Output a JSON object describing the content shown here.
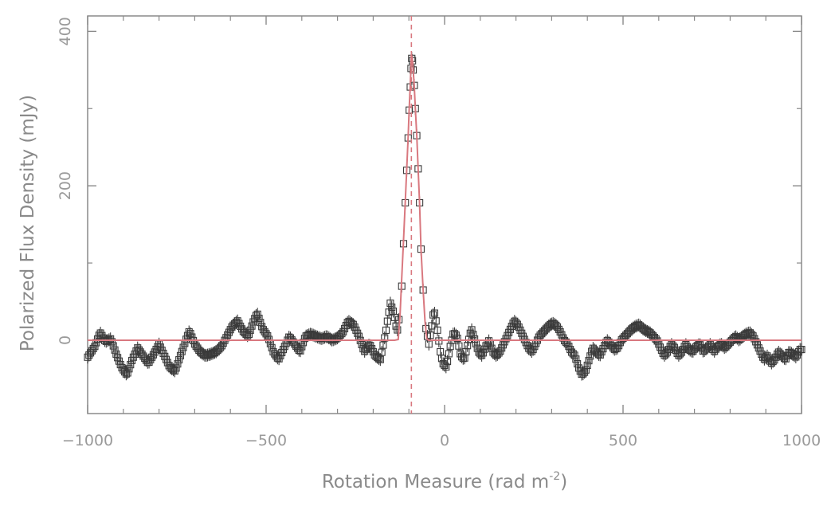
{
  "chart_data": {
    "type": "scatter",
    "xlabel": "Rotation Measure (rad m",
    "xlabel_exponent": "-2",
    "xlabel_close": ")",
    "ylabel": "Polarized Flux Density (mJy)",
    "xlim": [
      -1000,
      1000
    ],
    "ylim": [
      -95,
      420
    ],
    "xticks": [
      -1000,
      -500,
      0,
      500,
      1000
    ],
    "xtick_labels": [
      "−1000",
      "−500",
      "0",
      "500",
      "1000"
    ],
    "yticks": [
      0,
      200,
      400
    ],
    "ytick_labels": [
      "0",
      "200",
      "400"
    ],
    "x_minor_step": 100,
    "y_minor_step": 100,
    "grid": false,
    "marker": "open-square-with-error-bars",
    "peak_rm": -93,
    "series": [
      {
        "values": [
          [
            -1000,
            -22
          ],
          [
            -980,
            -8
          ],
          [
            -965,
            10
          ],
          [
            -950,
            -2
          ],
          [
            -935,
            2
          ],
          [
            -920,
            -18
          ],
          [
            -905,
            -35
          ],
          [
            -890,
            -45
          ],
          [
            -875,
            -25
          ],
          [
            -860,
            -10
          ],
          [
            -845,
            -20
          ],
          [
            -830,
            -30
          ],
          [
            -815,
            -18
          ],
          [
            -800,
            -5
          ],
          [
            -785,
            -20
          ],
          [
            -770,
            -35
          ],
          [
            -755,
            -40
          ],
          [
            -740,
            -20
          ],
          [
            -725,
            0
          ],
          [
            -715,
            12
          ],
          [
            -700,
            -5
          ],
          [
            -685,
            -15
          ],
          [
            -670,
            -20
          ],
          [
            -655,
            -18
          ],
          [
            -640,
            -15
          ],
          [
            -625,
            -8
          ],
          [
            -610,
            5
          ],
          [
            -595,
            18
          ],
          [
            -580,
            25
          ],
          [
            -565,
            12
          ],
          [
            -550,
            5
          ],
          [
            -535,
            25
          ],
          [
            -525,
            35
          ],
          [
            -510,
            15
          ],
          [
            -495,
            5
          ],
          [
            -480,
            -15
          ],
          [
            -465,
            -25
          ],
          [
            -450,
            -10
          ],
          [
            -435,
            5
          ],
          [
            -420,
            -5
          ],
          [
            -405,
            -15
          ],
          [
            -390,
            5
          ],
          [
            -375,
            8
          ],
          [
            -360,
            5
          ],
          [
            -345,
            2
          ],
          [
            -330,
            5
          ],
          [
            -315,
            0
          ],
          [
            -300,
            3
          ],
          [
            -285,
            10
          ],
          [
            -270,
            25
          ],
          [
            -255,
            20
          ],
          [
            -240,
            5
          ],
          [
            -225,
            -15
          ],
          [
            -210,
            -5
          ],
          [
            -195,
            -20
          ],
          [
            -180,
            -25
          ],
          [
            -165,
            10
          ],
          [
            -152,
            48
          ],
          [
            -142,
            35
          ],
          [
            -133,
            10
          ],
          [
            -127,
            30
          ],
          [
            -120,
            70
          ],
          [
            -115,
            125
          ],
          [
            -110,
            178
          ],
          [
            -106,
            220
          ],
          [
            -102,
            262
          ],
          [
            -99,
            298
          ],
          [
            -96,
            328
          ],
          [
            -94,
            352
          ],
          [
            -92,
            365
          ],
          [
            -90,
            362
          ],
          [
            -88,
            350
          ],
          [
            -85,
            330
          ],
          [
            -82,
            300
          ],
          [
            -78,
            265
          ],
          [
            -74,
            222
          ],
          [
            -70,
            178
          ],
          [
            -66,
            118
          ],
          [
            -60,
            65
          ],
          [
            -52,
            15
          ],
          [
            -44,
            -5
          ],
          [
            -37,
            15
          ],
          [
            -30,
            40
          ],
          [
            -22,
            20
          ],
          [
            -12,
            -15
          ],
          [
            -5,
            -30
          ],
          [
            5,
            -35
          ],
          [
            15,
            -10
          ],
          [
            25,
            10
          ],
          [
            35,
            5
          ],
          [
            45,
            -20
          ],
          [
            55,
            -25
          ],
          [
            65,
            -5
          ],
          [
            75,
            15
          ],
          [
            85,
            0
          ],
          [
            95,
            -15
          ],
          [
            105,
            -20
          ],
          [
            115,
            -8
          ],
          [
            125,
            0
          ],
          [
            135,
            -15
          ],
          [
            145,
            -20
          ],
          [
            155,
            -15
          ],
          [
            165,
            -5
          ],
          [
            175,
            5
          ],
          [
            185,
            15
          ],
          [
            195,
            25
          ],
          [
            205,
            20
          ],
          [
            215,
            10
          ],
          [
            225,
            0
          ],
          [
            235,
            -10
          ],
          [
            245,
            -15
          ],
          [
            255,
            -5
          ],
          [
            265,
            5
          ],
          [
            275,
            10
          ],
          [
            285,
            15
          ],
          [
            295,
            20
          ],
          [
            305,
            22
          ],
          [
            315,
            18
          ],
          [
            325,
            10
          ],
          [
            335,
            0
          ],
          [
            345,
            -5
          ],
          [
            355,
            -15
          ],
          [
            365,
            -20
          ],
          [
            375,
            -35
          ],
          [
            385,
            -45
          ],
          [
            395,
            -40
          ],
          [
            405,
            -25
          ],
          [
            415,
            -10
          ],
          [
            425,
            -15
          ],
          [
            435,
            -20
          ],
          [
            445,
            -10
          ],
          [
            455,
            0
          ],
          [
            465,
            -5
          ],
          [
            475,
            -12
          ],
          [
            485,
            -10
          ],
          [
            495,
            0
          ],
          [
            505,
            5
          ],
          [
            515,
            10
          ],
          [
            525,
            15
          ],
          [
            535,
            18
          ],
          [
            545,
            20
          ],
          [
            555,
            15
          ],
          [
            565,
            12
          ],
          [
            575,
            10
          ],
          [
            585,
            5
          ],
          [
            595,
            0
          ],
          [
            605,
            -10
          ],
          [
            615,
            -20
          ],
          [
            625,
            -15
          ],
          [
            635,
            -5
          ],
          [
            645,
            -10
          ],
          [
            655,
            -20
          ],
          [
            665,
            -15
          ],
          [
            675,
            -5
          ],
          [
            685,
            -12
          ],
          [
            695,
            -15
          ],
          [
            705,
            -8
          ],
          [
            715,
            -5
          ],
          [
            725,
            -15
          ],
          [
            735,
            -10
          ],
          [
            745,
            -5
          ],
          [
            755,
            -15
          ],
          [
            765,
            -8
          ],
          [
            775,
            -5
          ],
          [
            785,
            -10
          ],
          [
            795,
            -5
          ],
          [
            805,
            0
          ],
          [
            815,
            5
          ],
          [
            825,
            0
          ],
          [
            835,
            5
          ],
          [
            845,
            8
          ],
          [
            855,
            10
          ],
          [
            865,
            5
          ],
          [
            875,
            -5
          ],
          [
            885,
            -15
          ],
          [
            895,
            -25
          ],
          [
            905,
            -20
          ],
          [
            915,
            -30
          ],
          [
            925,
            -25
          ],
          [
            935,
            -15
          ],
          [
            945,
            -20
          ],
          [
            955,
            -25
          ],
          [
            965,
            -15
          ],
          [
            975,
            -18
          ],
          [
            985,
            -22
          ],
          [
            995,
            -12
          ]
        ]
      }
    ],
    "fit_line": [
      [
        -1000,
        0
      ],
      [
        -140,
        0
      ],
      [
        -130,
        1
      ],
      [
        -125,
        30
      ],
      [
        -120,
        80
      ],
      [
        -115,
        130
      ],
      [
        -110,
        180
      ],
      [
        -106,
        222
      ],
      [
        -102,
        264
      ],
      [
        -99,
        300
      ],
      [
        -96,
        332
      ],
      [
        -94,
        356
      ],
      [
        -93,
        370
      ],
      [
        -92,
        368
      ],
      [
        -90,
        362
      ],
      [
        -88,
        350
      ],
      [
        -85,
        330
      ],
      [
        -82,
        300
      ],
      [
        -78,
        265
      ],
      [
        -74,
        222
      ],
      [
        -70,
        178
      ],
      [
        -66,
        118
      ],
      [
        -60,
        65
      ],
      [
        -55,
        25
      ],
      [
        -50,
        2
      ],
      [
        -45,
        0
      ],
      [
        1000,
        0
      ]
    ],
    "colors": {
      "marker": "#3a3a3a",
      "fit": "#d9787f",
      "axis": "#8a8a8a",
      "tick_text": "#9a9a9a"
    }
  }
}
